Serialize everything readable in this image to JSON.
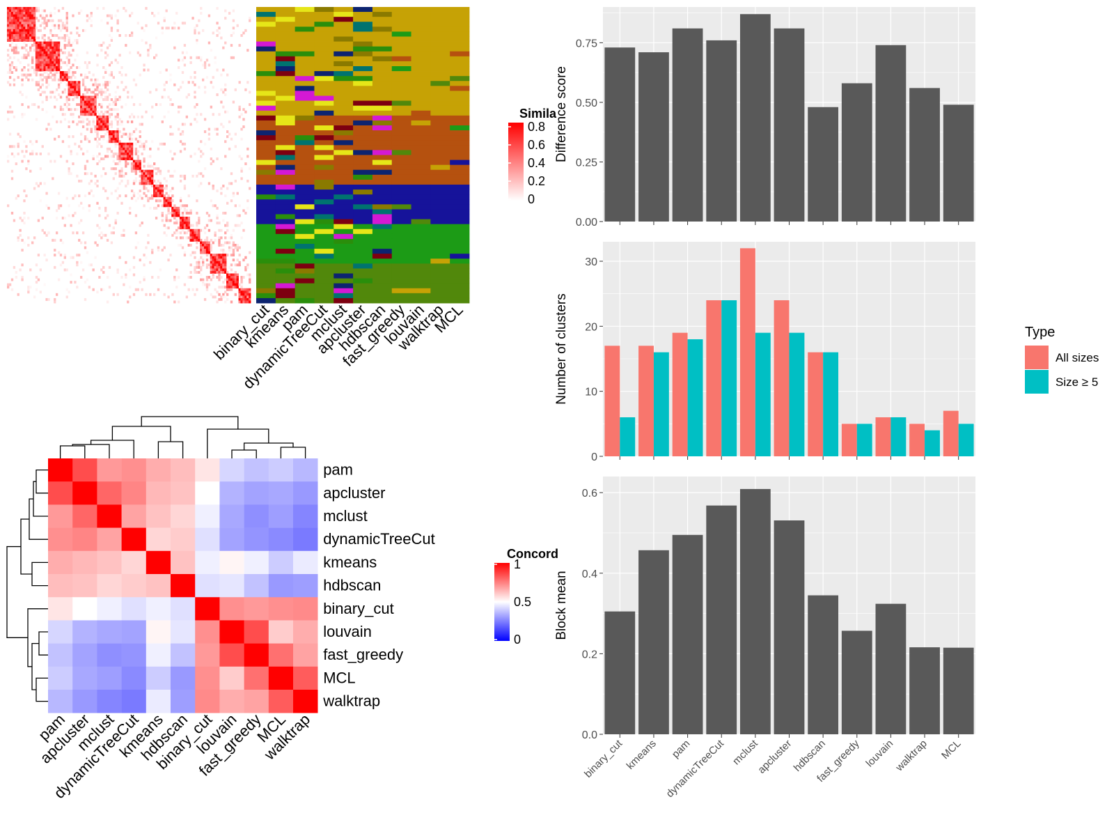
{
  "colors": {
    "panel_bg": "#ebebeb",
    "grid": "#ffffff",
    "bar": "#595959",
    "all_sizes": "#f8766d",
    "size5": "#00bfc4",
    "sim_high": "#ff0000",
    "sim_low": "#ffffff",
    "conc_high": "#ff0000",
    "conc_mid": "#ffffff",
    "conc_low": "#0000ff"
  },
  "methods_bar_order": [
    "binary_cut",
    "kmeans",
    "pam",
    "dynamicTreeCut",
    "mclust",
    "apcluster",
    "hdbscan",
    "fast_greedy",
    "louvain",
    "walktrap",
    "MCL"
  ],
  "top_heatmap": {
    "column_labels": [
      "binary_cut",
      "kmeans",
      "pam",
      "dynamicTreeCut",
      "mclust",
      "apcluster",
      "hdbscan",
      "fast_greedy",
      "louvain",
      "walktrap",
      "MCL"
    ],
    "legend_title": "Simila",
    "legend_ticks": [
      "0.8",
      "0.6",
      "0.4",
      "0.2",
      "0"
    ]
  },
  "concordance_heatmap": {
    "labels": [
      "pam",
      "apcluster",
      "mclust",
      "dynamicTreeCut",
      "kmeans",
      "hdbscan",
      "binary_cut",
      "louvain",
      "fast_greedy",
      "MCL",
      "walktrap"
    ],
    "legend_title": "Concord",
    "legend_ticks": [
      "1",
      "0.5",
      "0"
    ],
    "matrix": [
      [
        1.0,
        0.85,
        0.7,
        0.72,
        0.66,
        0.63,
        0.55,
        0.42,
        0.38,
        0.4,
        0.36
      ],
      [
        0.85,
        1.0,
        0.8,
        0.74,
        0.64,
        0.62,
        0.5,
        0.35,
        0.32,
        0.33,
        0.3
      ],
      [
        0.7,
        0.8,
        1.0,
        0.68,
        0.62,
        0.58,
        0.47,
        0.33,
        0.28,
        0.31,
        0.26
      ],
      [
        0.72,
        0.74,
        0.68,
        1.0,
        0.58,
        0.6,
        0.44,
        0.32,
        0.29,
        0.27,
        0.24
      ],
      [
        0.66,
        0.64,
        0.62,
        0.58,
        1.0,
        0.62,
        0.47,
        0.52,
        0.47,
        0.4,
        0.46
      ],
      [
        0.63,
        0.62,
        0.58,
        0.6,
        0.62,
        1.0,
        0.44,
        0.45,
        0.38,
        0.3,
        0.31
      ],
      [
        0.55,
        0.5,
        0.47,
        0.44,
        0.47,
        0.44,
        1.0,
        0.72,
        0.7,
        0.72,
        0.73
      ],
      [
        0.42,
        0.35,
        0.33,
        0.32,
        0.52,
        0.45,
        0.72,
        1.0,
        0.85,
        0.6,
        0.66
      ],
      [
        0.38,
        0.32,
        0.28,
        0.29,
        0.47,
        0.38,
        0.7,
        0.85,
        1.0,
        0.78,
        0.68
      ],
      [
        0.4,
        0.33,
        0.31,
        0.27,
        0.4,
        0.3,
        0.72,
        0.6,
        0.78,
        1.0,
        0.82
      ],
      [
        0.36,
        0.3,
        0.26,
        0.24,
        0.46,
        0.31,
        0.73,
        0.66,
        0.68,
        0.82,
        1.0
      ]
    ]
  },
  "legend_type": {
    "title": "Type",
    "entries": [
      "All sizes",
      "Size ≥ 5"
    ]
  },
  "chart_data": [
    {
      "type": "bar",
      "ylabel": "Difference score",
      "categories": [
        "binary_cut",
        "kmeans",
        "pam",
        "dynamicTreeCut",
        "mclust",
        "apcluster",
        "hdbscan",
        "fast_greedy",
        "louvain",
        "walktrap",
        "MCL"
      ],
      "values": [
        0.73,
        0.71,
        0.81,
        0.76,
        0.87,
        0.81,
        0.48,
        0.58,
        0.74,
        0.56,
        0.49
      ],
      "ylim": [
        0,
        0.9
      ],
      "yticks": [
        "0.00",
        "0.25",
        "0.50",
        "0.75"
      ]
    },
    {
      "type": "bar",
      "ylabel": "Number of clusters",
      "categories": [
        "binary_cut",
        "kmeans",
        "pam",
        "dynamicTreeCut",
        "mclust",
        "apcluster",
        "hdbscan",
        "fast_greedy",
        "louvain",
        "walktrap",
        "MCL"
      ],
      "series": [
        {
          "name": "All sizes",
          "values": [
            17,
            17,
            19,
            24,
            32,
            24,
            16,
            5,
            6,
            5,
            7
          ]
        },
        {
          "name": "Size ≥ 5",
          "values": [
            6,
            16,
            18,
            24,
            19,
            19,
            16,
            5,
            6,
            4,
            5
          ]
        }
      ],
      "ylim": [
        0,
        33
      ],
      "yticks": [
        "0",
        "10",
        "20",
        "30"
      ]
    },
    {
      "type": "bar",
      "ylabel": "Block mean",
      "categories": [
        "binary_cut",
        "kmeans",
        "pam",
        "dynamicTreeCut",
        "mclust",
        "apcluster",
        "hdbscan",
        "fast_greedy",
        "louvain",
        "walktrap",
        "MCL"
      ],
      "values": [
        0.305,
        0.457,
        0.495,
        0.568,
        0.609,
        0.531,
        0.345,
        0.257,
        0.324,
        0.216,
        0.215
      ],
      "ylim": [
        0,
        0.64
      ],
      "yticks": [
        "0.0",
        "0.2",
        "0.4",
        "0.6"
      ]
    }
  ]
}
